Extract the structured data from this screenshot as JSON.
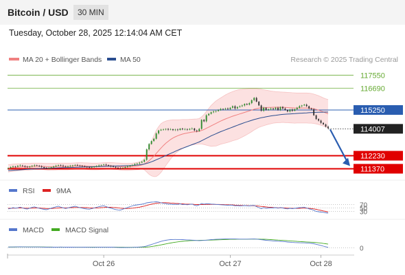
{
  "header": {
    "title": "Bitcoin / USD",
    "timeframe": "30 MIN"
  },
  "datetime": "Tuesday, October 28, 2025 12:14:04 AM CET",
  "credit": "Research © 2025 Trading Central",
  "colors": {
    "support": "#e00000",
    "resistance": "#66aa33",
    "pivot": "#2a5db0",
    "current": "#222222",
    "ma20": "#f08080",
    "ma50": "#2a4d8f",
    "band_fill": "#fcdcdc",
    "candle_up": "#2e8b2e",
    "candle_down": "#333333",
    "rsi": "#5577cc",
    "rsi_ma": "#dd2222",
    "macd": "#5577cc",
    "macd_signal": "#44aa22"
  },
  "chart_data": [
    {
      "type": "line",
      "panel": "price",
      "legend": [
        {
          "name": "MA 20 + Bollinger Bands",
          "color": "#f08080"
        },
        {
          "name": "MA 50",
          "color": "#2a4d8f"
        }
      ],
      "x_ticks": [
        "Oct 26",
        "Oct 27",
        "Oct 28"
      ],
      "ylim": [
        110800,
        118200
      ],
      "levels": [
        {
          "label": "117550",
          "value": 117550,
          "kind": "resistance"
        },
        {
          "label": "116690",
          "value": 116690,
          "kind": "resistance"
        },
        {
          "label": "115250",
          "value": 115250,
          "kind": "pivot"
        },
        {
          "label": "114007",
          "value": 114007,
          "kind": "current"
        },
        {
          "label": "112230",
          "value": 112230,
          "kind": "support"
        },
        {
          "label": "111370",
          "value": 111370,
          "kind": "support"
        }
      ],
      "close": [
        111420,
        111480,
        111520,
        111500,
        111560,
        111590,
        111550,
        111500,
        111470,
        111520,
        111560,
        111600,
        111570,
        111530,
        111480,
        111430,
        111390,
        111420,
        111470,
        111520,
        111570,
        111610,
        111580,
        111540,
        111500,
        111530,
        111560,
        111590,
        111620,
        111590,
        111560,
        111530,
        111500,
        111470,
        111450,
        111470,
        111510,
        111550,
        111590,
        111620,
        111650,
        111610,
        111570,
        111530,
        111490,
        111440,
        111410,
        111390,
        111430,
        111480,
        111530,
        111580,
        111620,
        111680,
        111720,
        111770,
        111830,
        111960,
        112650,
        113000,
        113200,
        113350,
        113700,
        113900,
        113950,
        113960,
        114000,
        113950,
        113980,
        113920,
        113960,
        113930,
        114020,
        113970,
        113990,
        113950,
        114000,
        114030,
        113900,
        113850,
        114000,
        114600,
        114500,
        114900,
        115000,
        115100,
        115150,
        115180,
        115250,
        115320,
        115300,
        115350,
        115300,
        115400,
        115500,
        115350,
        115450,
        115500,
        115550,
        115650,
        115600,
        115700,
        115900,
        116050,
        115800,
        115550,
        115200,
        115400,
        115250,
        115300,
        115350,
        115300,
        115400,
        115250,
        115450,
        115350,
        115250,
        115150,
        115280,
        115200,
        115300,
        115400,
        115500,
        115550,
        115600,
        115500,
        115350,
        115300,
        114900,
        114650,
        114550,
        114400,
        114300,
        114150,
        114050
      ],
      "ma20": [
        111400,
        111420,
        111440,
        111450,
        111470,
        111480,
        111490,
        111500,
        111500,
        111510,
        111520,
        111530,
        111530,
        111530,
        111530,
        111520,
        111510,
        111500,
        111500,
        111500,
        111510,
        111520,
        111520,
        111520,
        111520,
        111520,
        111530,
        111540,
        111550,
        111560,
        111560,
        111560,
        111550,
        111540,
        111530,
        111520,
        111520,
        111520,
        111530,
        111540,
        111550,
        111560,
        111560,
        111560,
        111550,
        111540,
        111530,
        111510,
        111500,
        111490,
        111490,
        111500,
        111510,
        111530,
        111550,
        111580,
        111620,
        111680,
        111780,
        111900,
        112050,
        112200,
        112380,
        112560,
        112740,
        112900,
        113050,
        113180,
        113300,
        113400,
        113480,
        113550,
        113610,
        113660,
        113700,
        113730,
        113760,
        113790,
        113810,
        113820,
        113840,
        113900,
        113960,
        114040,
        114120,
        114200,
        114280,
        114360,
        114440,
        114520,
        114590,
        114660,
        114720,
        114780,
        114840,
        114890,
        114940,
        114990,
        115040,
        115090,
        115140,
        115190,
        115240,
        115300,
        115340,
        115370,
        115390,
        115400,
        115410,
        115420,
        115420,
        115430,
        115430,
        115430,
        115430,
        115430,
        115420,
        115410,
        115400,
        115390,
        115380,
        115380,
        115380,
        115380,
        115380,
        115380,
        115370,
        115360,
        115330,
        115290,
        115240,
        115180,
        115120,
        115060,
        115000
      ],
      "band_upper": [
        111650,
        111660,
        111680,
        111690,
        111700,
        111710,
        111720,
        111730,
        111730,
        111730,
        111740,
        111740,
        111740,
        111740,
        111740,
        111730,
        111730,
        111730,
        111720,
        111720,
        111730,
        111740,
        111740,
        111740,
        111740,
        111740,
        111740,
        111750,
        111760,
        111770,
        111770,
        111770,
        111760,
        111760,
        111750,
        111740,
        111740,
        111740,
        111750,
        111760,
        111770,
        111780,
        111780,
        111780,
        111770,
        111760,
        111750,
        111740,
        111730,
        111720,
        111720,
        111730,
        111740,
        111760,
        111790,
        111830,
        111880,
        112050,
        112400,
        112800,
        113200,
        113550,
        113900,
        114150,
        114350,
        114450,
        114520,
        114560,
        114580,
        114600,
        114600,
        114600,
        114610,
        114620,
        114620,
        114620,
        114630,
        114640,
        114650,
        114660,
        114680,
        114800,
        114950,
        115150,
        115350,
        115550,
        115700,
        115850,
        115950,
        116050,
        116150,
        116250,
        116330,
        116400,
        116460,
        116520,
        116570,
        116600,
        116620,
        116640,
        116650,
        116660,
        116660,
        116670,
        116660,
        116640,
        116620,
        116590,
        116560,
        116530,
        116500,
        116480,
        116460,
        116450,
        116440,
        116430,
        116420,
        116410,
        116400,
        116390,
        116380,
        116370,
        116370,
        116370,
        116370,
        116370,
        116360,
        116340,
        116300,
        116250,
        116190,
        116120,
        116050,
        115990,
        115940
      ],
      "band_lower": [
        111150,
        111180,
        111200,
        111210,
        111240,
        111250,
        111260,
        111270,
        111270,
        111290,
        111300,
        111320,
        111320,
        111320,
        111320,
        111310,
        111290,
        111270,
        111280,
        111280,
        111290,
        111300,
        111300,
        111300,
        111300,
        111300,
        111320,
        111330,
        111340,
        111350,
        111350,
        111350,
        111340,
        111320,
        111310,
        111300,
        111300,
        111300,
        111310,
        111320,
        111330,
        111340,
        111340,
        111340,
        111330,
        111320,
        111310,
        111280,
        111270,
        111260,
        111260,
        111270,
        111280,
        111300,
        111310,
        111330,
        111360,
        111310,
        111160,
        111000,
        110900,
        110850,
        110860,
        110970,
        111130,
        111350,
        111580,
        111800,
        112020,
        112200,
        112360,
        112500,
        112610,
        112700,
        112780,
        112840,
        112890,
        112940,
        112970,
        112980,
        113000,
        113000,
        112970,
        112930,
        112890,
        112850,
        112860,
        112870,
        112930,
        112990,
        113030,
        113070,
        113110,
        113160,
        113220,
        113260,
        113310,
        113380,
        113460,
        113540,
        113630,
        113720,
        113820,
        113930,
        114020,
        114100,
        114160,
        114210,
        114260,
        114310,
        114340,
        114380,
        114400,
        114410,
        114420,
        114430,
        114420,
        114410,
        114400,
        114390,
        114380,
        114390,
        114390,
        114390,
        114390,
        114390,
        114380,
        114380,
        114360,
        114330,
        114290,
        114240,
        114190,
        114130,
        114060
      ],
      "ma50": [
        111250,
        111260,
        111270,
        111280,
        111290,
        111300,
        111310,
        111320,
        111330,
        111340,
        111350,
        111360,
        111370,
        111380,
        111390,
        111400,
        111405,
        111410,
        111415,
        111420,
        111425,
        111430,
        111435,
        111440,
        111445,
        111450,
        111455,
        111460,
        111465,
        111470,
        111475,
        111480,
        111485,
        111490,
        111495,
        111500,
        111505,
        111510,
        111515,
        111520,
        111525,
        111530,
        111535,
        111540,
        111545,
        111550,
        111555,
        111560,
        111565,
        111570,
        111575,
        111580,
        111590,
        111600,
        111615,
        111630,
        111650,
        111680,
        111720,
        111770,
        111830,
        111890,
        111960,
        112030,
        112100,
        112170,
        112240,
        112310,
        112380,
        112450,
        112520,
        112590,
        112660,
        112720,
        112780,
        112840,
        112900,
        112960,
        113020,
        113080,
        113140,
        113220,
        113300,
        113380,
        113460,
        113540,
        113610,
        113680,
        113750,
        113820,
        113880,
        113940,
        114000,
        114060,
        114120,
        114180,
        114240,
        114300,
        114360,
        114420,
        114470,
        114520,
        114570,
        114620,
        114660,
        114700,
        114740,
        114770,
        114800,
        114830,
        114860,
        114880,
        114900,
        114920,
        114940,
        114960,
        114970,
        114980,
        114990,
        115000,
        115010,
        115020,
        115030,
        115040,
        115050,
        115060,
        115070,
        115080,
        115090,
        115095,
        115100,
        115105,
        115110,
        115112,
        115115
      ]
    },
    {
      "type": "line",
      "panel": "rsi",
      "legend": [
        {
          "name": "RSI",
          "color": "#5577cc"
        },
        {
          "name": "9MA",
          "color": "#dd2222"
        }
      ],
      "levels": [
        "70",
        "50",
        "30"
      ],
      "ylim": [
        0,
        100
      ],
      "rsi": [
        45,
        47,
        52,
        49,
        51,
        55,
        50,
        46,
        44,
        49,
        54,
        57,
        52,
        48,
        45,
        42,
        40,
        44,
        49,
        53,
        57,
        60,
        55,
        51,
        47,
        50,
        54,
        57,
        60,
        56,
        52,
        49,
        46,
        44,
        43,
        46,
        50,
        54,
        58,
        61,
        63,
        58,
        53,
        49,
        45,
        41,
        39,
        38,
        43,
        48,
        53,
        58,
        62,
        66,
        68,
        70,
        72,
        75,
        80,
        82,
        84,
        85,
        86,
        84,
        80,
        77,
        76,
        72,
        73,
        70,
        72,
        71,
        74,
        70,
        71,
        69,
        71,
        73,
        66,
        63,
        68,
        76,
        72,
        75,
        74,
        73,
        72,
        71,
        70,
        69,
        68,
        67,
        66,
        67,
        66,
        63,
        64,
        62,
        63,
        64,
        63,
        62,
        64,
        65,
        58,
        52,
        46,
        52,
        48,
        50,
        51,
        50,
        52,
        49,
        53,
        50,
        47,
        45,
        48,
        46,
        48,
        50,
        52,
        53,
        54,
        50,
        45,
        42,
        36,
        30,
        28,
        26,
        25,
        22,
        20
      ],
      "rsi_ma": [
        48,
        48,
        49,
        49,
        50,
        50,
        50,
        49,
        49,
        49,
        49,
        50,
        50,
        50,
        49,
        48,
        47,
        47,
        47,
        48,
        49,
        50,
        51,
        51,
        51,
        51,
        52,
        52,
        53,
        53,
        53,
        53,
        52,
        52,
        51,
        50,
        50,
        50,
        51,
        52,
        53,
        54,
        54,
        54,
        53,
        52,
        51,
        49,
        48,
        47,
        47,
        48,
        49,
        51,
        53,
        55,
        58,
        61,
        65,
        69,
        72,
        75,
        78,
        79,
        80,
        81,
        81,
        80,
        79,
        78,
        77,
        76,
        75,
        74,
        73,
        72,
        72,
        72,
        71,
        70,
        70,
        70,
        70,
        71,
        71,
        71,
        71,
        71,
        71,
        70,
        70,
        69,
        69,
        68,
        68,
        67,
        66,
        65,
        65,
        64,
        64,
        63,
        63,
        63,
        62,
        61,
        59,
        58,
        56,
        55,
        54,
        53,
        52,
        51,
        51,
        51,
        50,
        49,
        49,
        48,
        48,
        48,
        48,
        49,
        49,
        49,
        48,
        47,
        45,
        42,
        39,
        36,
        33,
        30,
        27
      ]
    },
    {
      "type": "line",
      "panel": "macd",
      "legend": [
        {
          "name": "MACD",
          "color": "#5577cc"
        },
        {
          "name": "MACD Signal",
          "color": "#44aa22"
        }
      ],
      "levels": [
        "0"
      ],
      "ylim": [
        -320,
        560
      ],
      "macd": [
        30,
        31,
        33,
        34,
        36,
        37,
        36,
        35,
        33,
        32,
        32,
        33,
        33,
        32,
        30,
        27,
        24,
        22,
        22,
        23,
        25,
        27,
        28,
        27,
        25,
        24,
        24,
        25,
        26,
        27,
        27,
        26,
        24,
        22,
        20,
        19,
        19,
        20,
        22,
        24,
        26,
        26,
        25,
        23,
        20,
        17,
        14,
        11,
        10,
        10,
        11,
        13,
        16,
        20,
        24,
        29,
        35,
        45,
        70,
        100,
        130,
        160,
        195,
        225,
        255,
        280,
        300,
        315,
        325,
        330,
        332,
        330,
        328,
        325,
        320,
        315,
        310,
        305,
        298,
        290,
        285,
        290,
        295,
        305,
        315,
        325,
        332,
        338,
        342,
        345,
        348,
        350,
        351,
        352,
        352,
        350,
        348,
        346,
        345,
        345,
        345,
        346,
        348,
        350,
        345,
        335,
        320,
        312,
        300,
        290,
        282,
        275,
        270,
        262,
        258,
        250,
        240,
        230,
        222,
        214,
        208,
        204,
        200,
        198,
        196,
        192,
        185,
        175,
        160,
        140,
        115,
        90,
        65,
        40,
        15
      ],
      "signal": [
        28,
        29,
        29,
        30,
        31,
        32,
        32,
        33,
        33,
        33,
        33,
        33,
        33,
        33,
        32,
        31,
        30,
        29,
        28,
        27,
        27,
        27,
        27,
        27,
        27,
        26,
        26,
        26,
        26,
        26,
        26,
        26,
        26,
        25,
        25,
        24,
        23,
        23,
        23,
        23,
        23,
        24,
        24,
        24,
        23,
        23,
        22,
        21,
        20,
        19,
        18,
        18,
        17,
        17,
        18,
        19,
        20,
        22,
        28,
        36,
        48,
        62,
        78,
        95,
        114,
        133,
        153,
        172,
        190,
        207,
        222,
        236,
        248,
        258,
        267,
        275,
        281,
        287,
        291,
        294,
        297,
        299,
        301,
        303,
        305,
        307,
        310,
        314,
        318,
        322,
        326,
        330,
        333,
        336,
        339,
        341,
        342,
        343,
        344,
        344,
        344,
        345,
        345,
        346,
        346,
        345,
        343,
        340,
        336,
        331,
        326,
        320,
        314,
        308,
        302,
        296,
        290,
        283,
        276,
        269,
        262,
        256,
        250,
        244,
        238,
        233,
        228,
        222,
        215,
        207,
        197,
        186,
        173,
        160,
        145
      ]
    }
  ]
}
